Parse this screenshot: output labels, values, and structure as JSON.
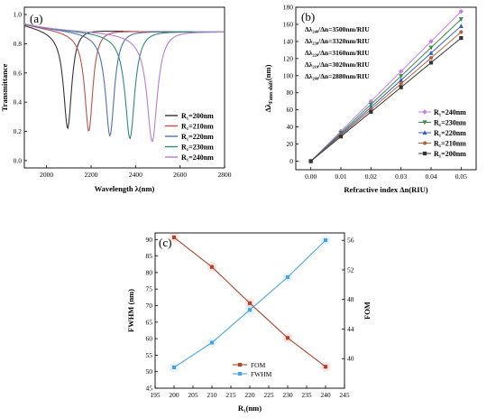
{
  "chart_data": [
    {
      "type": "line",
      "panel_label": "(a)",
      "xlabel": "Wavelength λ(nm)",
      "ylabel": "Transmittance",
      "xlim": [
        1900,
        2800
      ],
      "ylim": [
        -0.05,
        1.05
      ],
      "xticks": [
        "2000",
        "2200",
        "2400",
        "2600",
        "2800"
      ],
      "yticks": [
        "0.0",
        "0.2",
        "0.4",
        "0.6",
        "0.8",
        "1.0"
      ],
      "legend_position": "bottom-right",
      "series": [
        {
          "name": "R₁=200nm",
          "color": "#333333",
          "dip_x": 2095,
          "dip_y": 0.22,
          "width": 22,
          "base_y": 0.88
        },
        {
          "name": "R₁=210nm",
          "color": "#c0504d",
          "dip_x": 2190,
          "dip_y": 0.2,
          "width": 22,
          "base_y": 0.88
        },
        {
          "name": "R₁=220nm",
          "color": "#4f6fb5",
          "dip_x": 2285,
          "dip_y": 0.17,
          "width": 24,
          "base_y": 0.88
        },
        {
          "name": "R₁=230nm",
          "color": "#2e8b7a",
          "dip_x": 2375,
          "dip_y": 0.15,
          "width": 26,
          "base_y": 0.88
        },
        {
          "name": "R₁=240nm",
          "color": "#b57cd6",
          "dip_x": 2475,
          "dip_y": 0.13,
          "width": 28,
          "base_y": 0.88
        }
      ]
    },
    {
      "type": "line",
      "panel_label": "(b)",
      "xlabel": "Refractive index Δn(RIU)",
      "ylabel": "Δλ_Fano shift(nm)",
      "xlim": [
        -0.005,
        0.055
      ],
      "ylim": [
        -10,
        180
      ],
      "xticks": [
        "0.00",
        "0.01",
        "0.02",
        "0.03",
        "0.04",
        "0.05"
      ],
      "yticks": [
        "0",
        "20",
        "40",
        "60",
        "80",
        "100",
        "120",
        "140",
        "160",
        "180"
      ],
      "x": [
        0,
        0.01,
        0.02,
        0.03,
        0.04,
        0.05
      ],
      "legend_position": "bottom-right",
      "annotations": [
        "Δλ₂₄₀/Δn=3500nm/RIU",
        "Δλ₂₃₀/Δn=3320nm/RIU",
        "Δλ₂₂₀/Δn=3160nm/RIU",
        "Δλ₂₁₀/Δn=3020nm/RIU",
        "Δλ₂₀₀/Δn=2880nm/RIU"
      ],
      "series": [
        {
          "name": "R₁=240nm",
          "color": "#c77ee8",
          "marker": "diamond",
          "values": [
            0,
            35,
            70,
            105,
            140,
            175
          ]
        },
        {
          "name": "R₁=230nm",
          "color": "#3d8b46",
          "marker": "tri-down",
          "values": [
            0,
            33.2,
            66.4,
            99.6,
            132.8,
            166
          ]
        },
        {
          "name": "R₁=220nm",
          "color": "#2f5fbf",
          "marker": "tri-up",
          "values": [
            0,
            31.6,
            63.2,
            94.8,
            126.4,
            158
          ]
        },
        {
          "name": "R₁=210nm",
          "color": "#b8643a",
          "marker": "circle",
          "values": [
            0,
            30.2,
            60.4,
            90.6,
            120.8,
            151
          ]
        },
        {
          "name": "R₁=200nm",
          "color": "#333333",
          "marker": "square",
          "values": [
            0,
            28.8,
            57.6,
            86.4,
            115.2,
            144
          ]
        }
      ]
    },
    {
      "type": "line",
      "panel_label": "(c)",
      "xlabel": "R₁(nm)",
      "ylabel": "FWHM (nm)",
      "ylabel_right": "FOM",
      "xlim": [
        195,
        245
      ],
      "ylim": [
        45,
        92
      ],
      "ylim_right": [
        36,
        57
      ],
      "xticks": [
        "195",
        "200",
        "205",
        "210",
        "215",
        "220",
        "225",
        "230",
        "235",
        "240",
        "245"
      ],
      "yticks": [
        "45",
        "50",
        "55",
        "60",
        "65",
        "70",
        "75",
        "80",
        "85",
        "90"
      ],
      "yticks_right": [
        "40",
        "44",
        "48",
        "52",
        "56"
      ],
      "x": [
        200,
        210,
        220,
        230,
        240
      ],
      "legend_position": "bottom-center",
      "series": [
        {
          "name": "FOM",
          "axis": "right",
          "color": "#b0442c",
          "marker": "square",
          "values": [
            56.4,
            52.4,
            47.5,
            42.8,
            38.9
          ]
        },
        {
          "name": "FWHM",
          "axis": "left",
          "color": "#4aa3df",
          "marker": "square",
          "values": [
            51.3,
            58.8,
            68.7,
            78.6,
            89.8
          ]
        }
      ]
    }
  ]
}
